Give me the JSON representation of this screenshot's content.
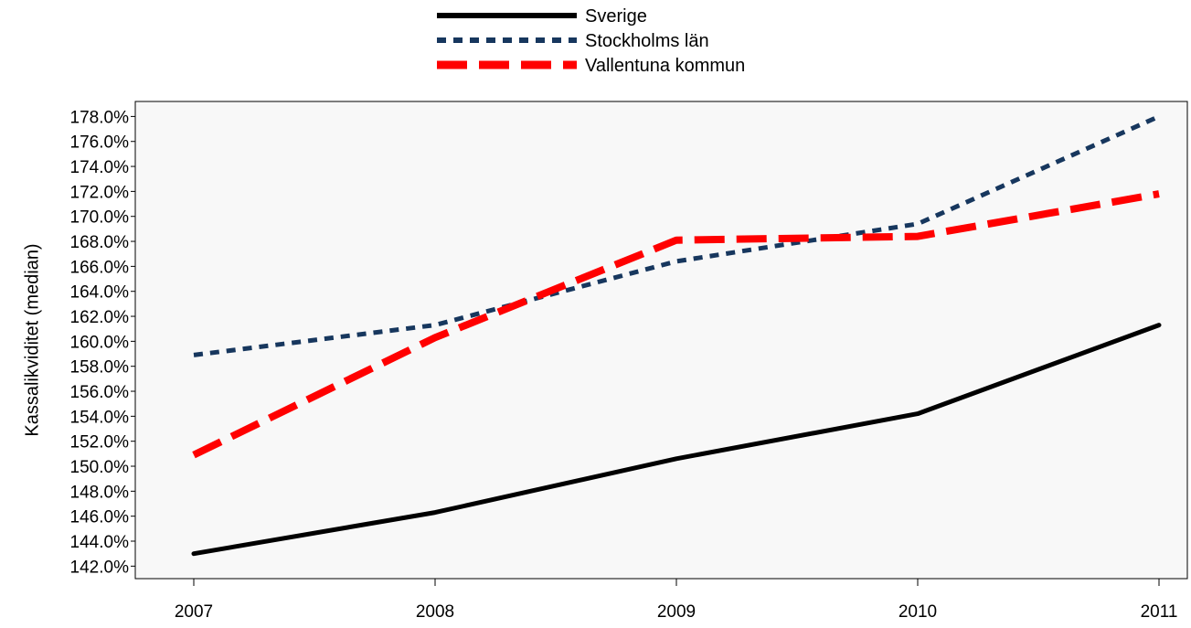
{
  "chart_data": {
    "type": "line",
    "title": "",
    "xlabel": "",
    "ylabel": "Kassalikviditet (median)",
    "categories": [
      "2007",
      "2008",
      "2009",
      "2010",
      "2011"
    ],
    "ylim": [
      141.0,
      179.2
    ],
    "yticks": [
      142,
      144,
      146,
      148,
      150,
      152,
      154,
      156,
      158,
      160,
      162,
      164,
      166,
      168,
      170,
      172,
      174,
      176,
      178
    ],
    "ytick_labels": [
      "142.0%",
      "144.0%",
      "146.0%",
      "148.0%",
      "150.0%",
      "152.0%",
      "154.0%",
      "156.0%",
      "158.0%",
      "160.0%",
      "162.0%",
      "164.0%",
      "166.0%",
      "168.0%",
      "170.0%",
      "172.0%",
      "174.0%",
      "176.0%",
      "178.0%"
    ],
    "grid": false,
    "plot_background": "#f8f8f8",
    "legend_position": "top-center",
    "series": [
      {
        "name": "Sverige",
        "values": [
          143.0,
          146.3,
          150.6,
          154.2,
          161.3
        ],
        "color": "#000000",
        "style": "solid"
      },
      {
        "name": "Stockholms län",
        "values": [
          158.9,
          161.3,
          166.4,
          169.4,
          178.0
        ],
        "color": "#17375e",
        "style": "dotted"
      },
      {
        "name": "Vallentuna kommun",
        "values": [
          150.9,
          160.3,
          168.1,
          168.4,
          171.8
        ],
        "color": "#ff0000",
        "style": "dashed"
      }
    ]
  }
}
